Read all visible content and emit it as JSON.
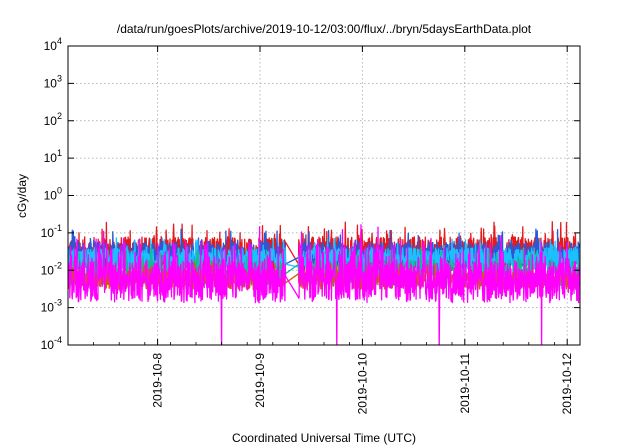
{
  "chart_data": {
    "type": "line",
    "title": "/data/run/goesPlots/archive/2019-10-12/03:00/flux/../bryn/5daysEarthData.plot",
    "xlabel": "Coordinated Universal Time (UTC)",
    "ylabel": "cGy/day",
    "yscale": "log",
    "ylim": [
      0.0001,
      10000
    ],
    "y_ticks": [
      {
        "value": 0.0001,
        "base": "10",
        "exp": "-4"
      },
      {
        "value": 0.001,
        "base": "10",
        "exp": "-3"
      },
      {
        "value": 0.01,
        "base": "10",
        "exp": "-2"
      },
      {
        "value": 0.1,
        "base": "10",
        "exp": "-1"
      },
      {
        "value": 1,
        "base": "10",
        "exp": "0"
      },
      {
        "value": 10,
        "base": "10",
        "exp": "1"
      },
      {
        "value": 100,
        "base": "10",
        "exp": "2"
      },
      {
        "value": 1000,
        "base": "10",
        "exp": "3"
      },
      {
        "value": 10000,
        "base": "10",
        "exp": "4"
      }
    ],
    "xlim": [
      "2019-10-07T03:00",
      "2019-10-12T03:00"
    ],
    "x_ticks": [
      {
        "value": "2019-10-08T00:00",
        "label": "2019-10-8"
      },
      {
        "value": "2019-10-09T00:00",
        "label": "2019-10-9"
      },
      {
        "value": "2019-10-10T00:00",
        "label": "2019-10-10"
      },
      {
        "value": "2019-10-11T00:00",
        "label": "2019-10-11"
      },
      {
        "value": "2019-10-12T00:00",
        "label": "2019-10-12"
      }
    ],
    "grid": true,
    "gap": [
      "2019-10-09T06:00",
      "2019-10-09T09:00"
    ],
    "series": [
      {
        "color": "#e41a1c",
        "baseline": 0.028,
        "spread": 0.45,
        "dips": []
      },
      {
        "color": "#2a58d6",
        "baseline": 0.024,
        "spread": 0.38,
        "dips": []
      },
      {
        "color": "#1ac0ff",
        "baseline": 0.02,
        "spread": 0.3,
        "dips": []
      },
      {
        "color": "#18b89a",
        "baseline": 0.0085,
        "spread": 0.35,
        "dips": []
      },
      {
        "color": "#d45a00",
        "baseline": 0.0055,
        "spread": 0.25,
        "dips": []
      },
      {
        "color": "#ff00ff",
        "baseline": 0.0048,
        "spread": 0.55,
        "dips": [
          "2019-10-08T15:00",
          "2019-10-09T18:00",
          "2019-10-10T18:00",
          "2019-10-11T18:00"
        ]
      }
    ]
  }
}
